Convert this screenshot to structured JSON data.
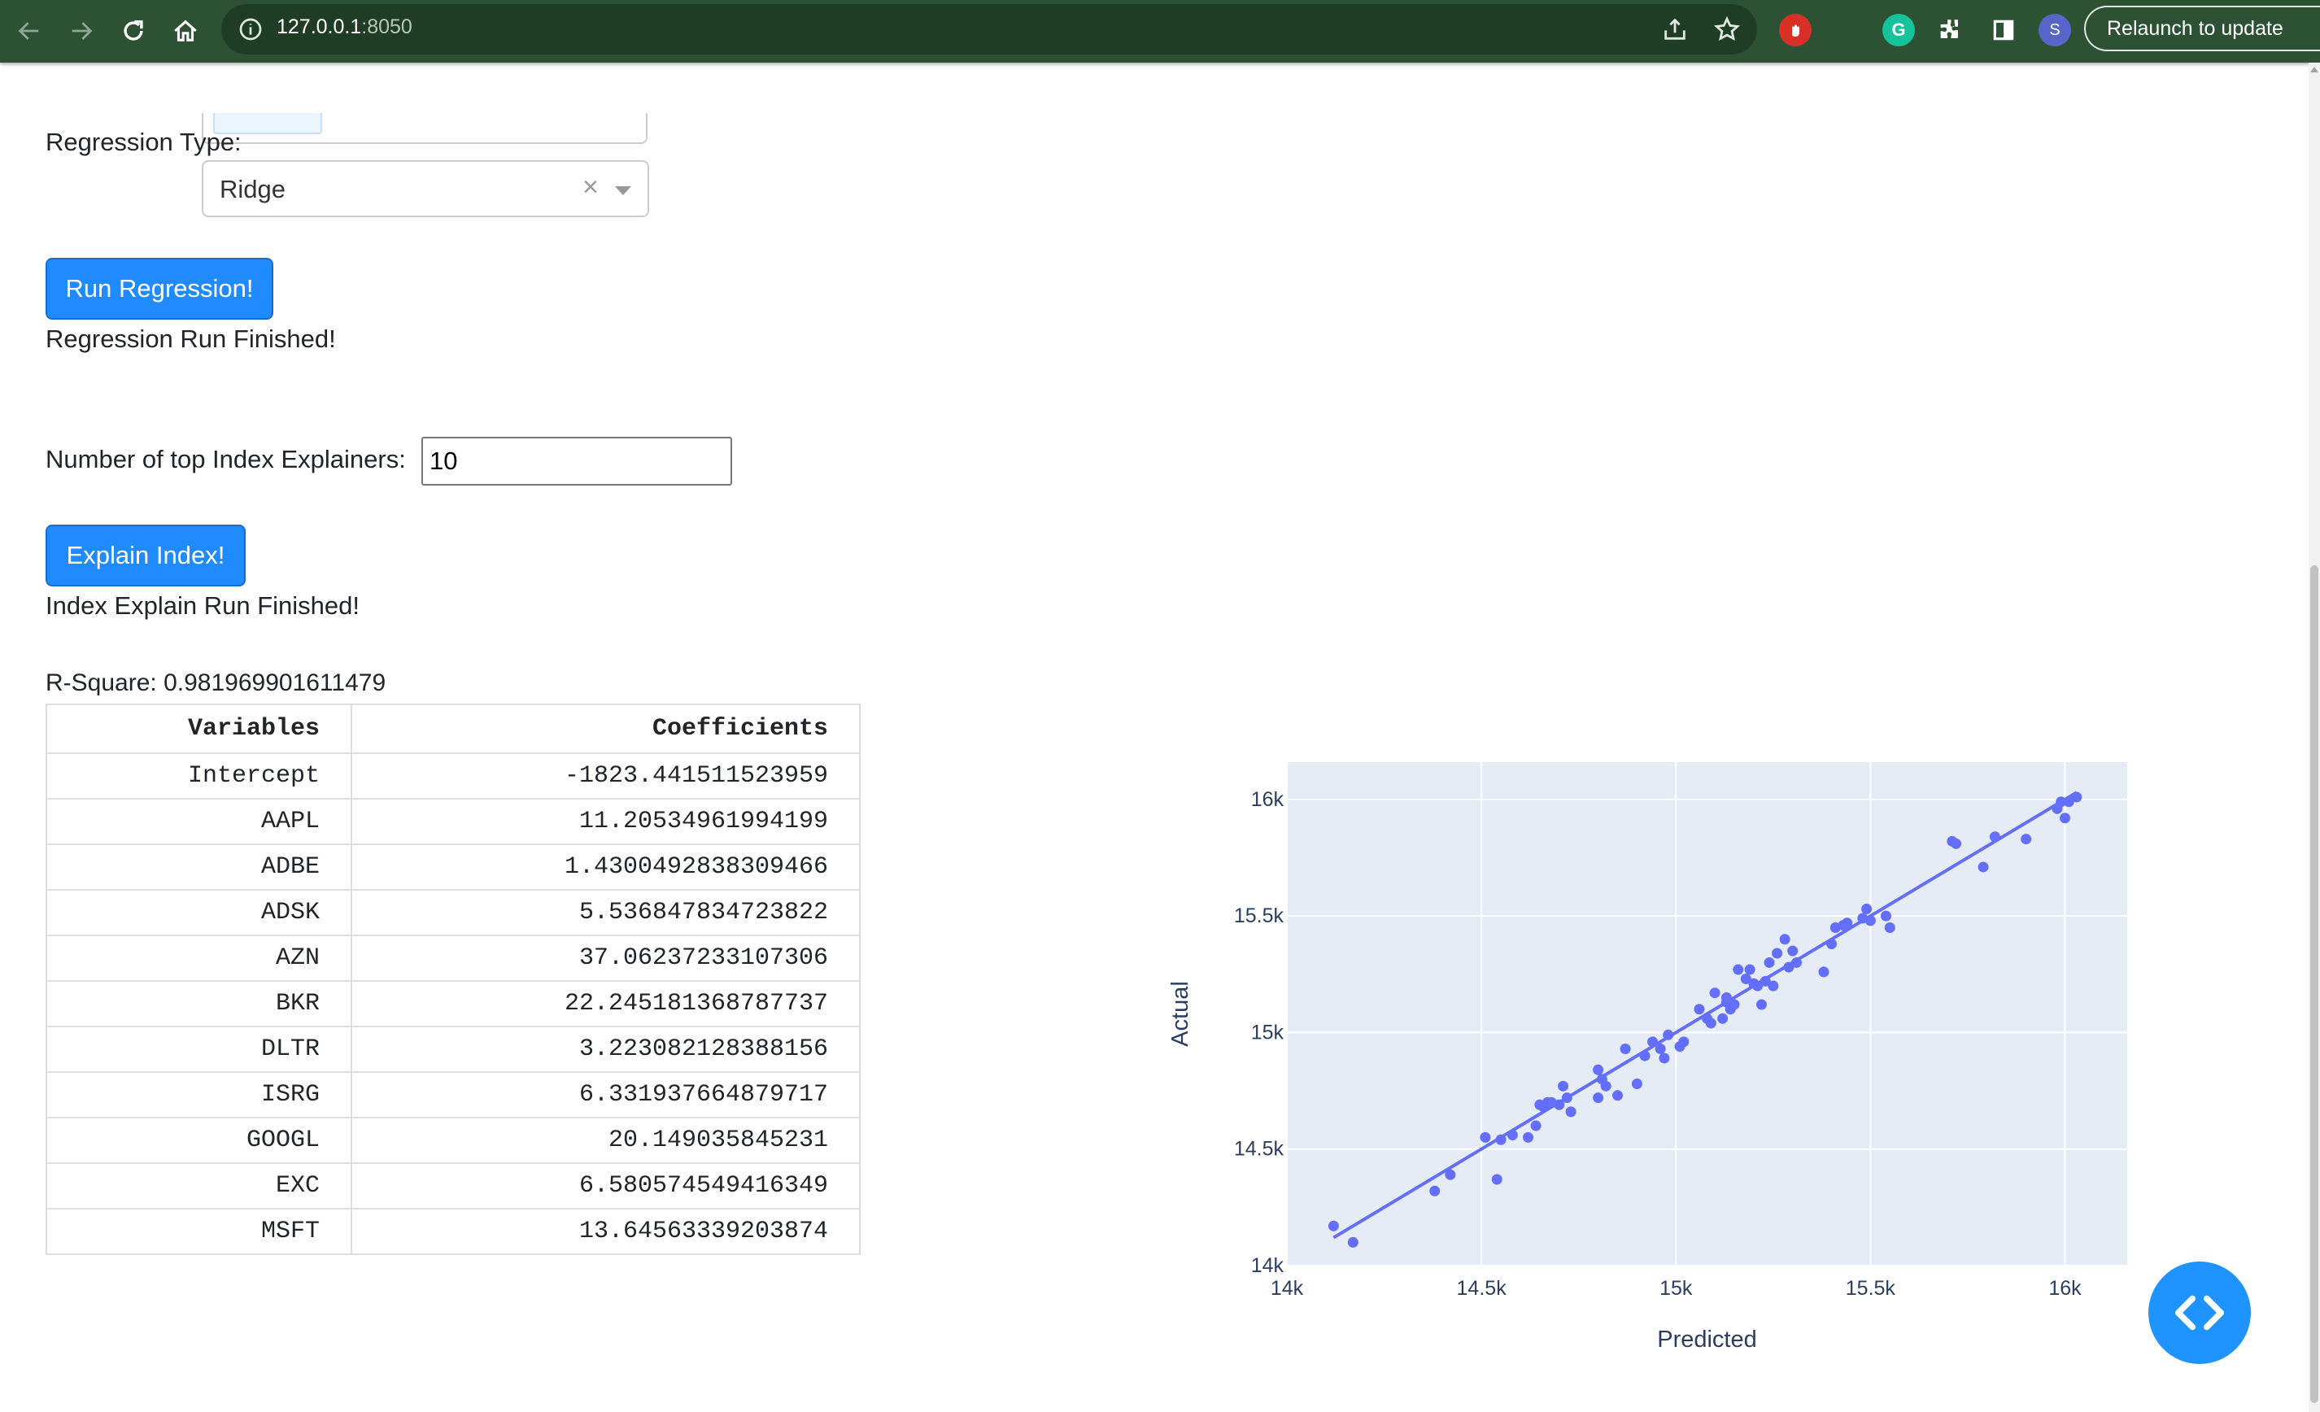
{
  "browser": {
    "url_host": "127.0.0.1",
    "url_port": ":8050",
    "relaunch_label": "Relaunch to update",
    "profile_initial": "S",
    "extension_initial": "G"
  },
  "form": {
    "regression_type_label": "Regression Type:",
    "regression_type_value": "Ridge",
    "clear_glyph": "×",
    "run_button": "Run Regression!",
    "run_status": "Regression Run Finished!",
    "explainers_label": "Number of top Index Explainers:",
    "explainers_value": "10",
    "explain_button": "Explain Index!",
    "explain_status": "Index Explain Run Finished!",
    "r_square": "R-Square: 0.981969901611479"
  },
  "table": {
    "headers": [
      "Variables",
      "Coefficients"
    ],
    "rows": [
      [
        "Intercept",
        "-1823.441511523959"
      ],
      [
        "AAPL",
        "11.20534961994199"
      ],
      [
        "ADBE",
        "1.4300492838309466"
      ],
      [
        "ADSK",
        "5.536847834723822"
      ],
      [
        "AZN",
        "37.06237233107306"
      ],
      [
        "BKR",
        "22.245181368787737"
      ],
      [
        "DLTR",
        "3.223082128388156"
      ],
      [
        "ISRG",
        "6.331937664879717"
      ],
      [
        "GOOGL",
        "20.149035845231"
      ],
      [
        "EXC",
        "6.580574549416349"
      ],
      [
        "MSFT",
        "13.64563339203874"
      ]
    ]
  },
  "chart_data": {
    "type": "scatter",
    "xlabel": "Predicted",
    "ylabel": "Actual",
    "xlim": [
      14000,
      16160
    ],
    "ylim": [
      14000,
      16160
    ],
    "xticks": [
      14000,
      14500,
      15000,
      15500,
      16000
    ],
    "xtick_labels": [
      "14k",
      "14.5k",
      "15k",
      "15.5k",
      "16k"
    ],
    "yticks": [
      14000,
      14500,
      15000,
      15500,
      16000
    ],
    "ytick_labels": [
      "14k",
      "14.5k",
      "15k",
      "15.5k",
      "16k"
    ],
    "grid": true,
    "point_color": "#636efa",
    "plot_bg": "#e5ecf6",
    "fit_line": [
      [
        14120,
        14120
      ],
      [
        16030,
        16030
      ]
    ],
    "x": [
      14120,
      14170,
      14380,
      14420,
      14510,
      14540,
      14550,
      14580,
      14620,
      14640,
      14650,
      14660,
      14670,
      14680,
      14700,
      14710,
      14720,
      14730,
      14800,
      14800,
      14810,
      14820,
      14850,
      14870,
      14900,
      14920,
      14940,
      14960,
      14970,
      14980,
      15010,
      15020,
      15060,
      15080,
      15090,
      15100,
      15120,
      15130,
      15130,
      15140,
      15150,
      15160,
      15180,
      15190,
      15200,
      15210,
      15220,
      15230,
      15240,
      15250,
      15260,
      15280,
      15290,
      15300,
      15310,
      15380,
      15400,
      15410,
      15430,
      15440,
      15480,
      15490,
      15500,
      15540,
      15550,
      15710,
      15720,
      15790,
      15820,
      15900,
      15980,
      15990,
      16000,
      16010,
      16030
    ],
    "y": [
      14170,
      14100,
      14320,
      14390,
      14550,
      14370,
      14540,
      14560,
      14550,
      14600,
      14690,
      14680,
      14700,
      14700,
      14690,
      14770,
      14720,
      14660,
      14720,
      14840,
      14800,
      14770,
      14730,
      14930,
      14780,
      14900,
      14960,
      14930,
      14890,
      14990,
      14940,
      14960,
      15100,
      15060,
      15040,
      15170,
      15060,
      15150,
      15130,
      15100,
      15120,
      15270,
      15230,
      15270,
      15210,
      15200,
      15120,
      15220,
      15300,
      15200,
      15340,
      15400,
      15280,
      15350,
      15300,
      15260,
      15380,
      15450,
      15460,
      15470,
      15490,
      15530,
      15480,
      15500,
      15450,
      15820,
      15810,
      15710,
      15840,
      15830,
      15960,
      15990,
      15920,
      15990,
      16010
    ]
  }
}
